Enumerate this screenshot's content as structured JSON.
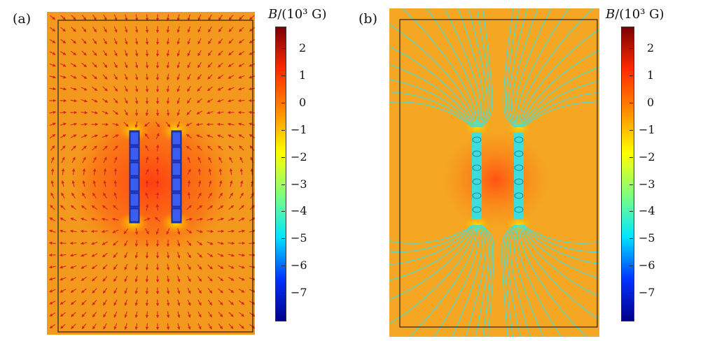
{
  "panels": [
    {
      "label": "(a)",
      "type": "arrow-field"
    },
    {
      "label": "(b)",
      "type": "streamlines"
    }
  ],
  "colorbar": {
    "symbol": "B",
    "unit": "/(10³ G)",
    "ticks": [
      {
        "value": 2,
        "label": "2"
      },
      {
        "value": 1,
        "label": "1"
      },
      {
        "value": 0,
        "label": "0"
      },
      {
        "value": -1,
        "label": "−1"
      },
      {
        "value": -2,
        "label": "−2"
      },
      {
        "value": -3,
        "label": "−3"
      },
      {
        "value": -4,
        "label": "−4"
      },
      {
        "value": -5,
        "label": "−5"
      },
      {
        "value": -6,
        "label": "−6"
      },
      {
        "value": -7,
        "label": "−7"
      }
    ],
    "range": [
      -8,
      2.8
    ],
    "colors": [
      "#00008c",
      "#0033ff",
      "#00e5ff",
      "#7fff7f",
      "#ffff00",
      "#ff8c00",
      "#ff2a00",
      "#7a0000"
    ]
  },
  "colors": {
    "background": "#f39a1e",
    "background_b": "#f5a623",
    "magnet": "#2438c8",
    "arrow": "#d8231c",
    "streamline": "#34e0e8"
  }
}
